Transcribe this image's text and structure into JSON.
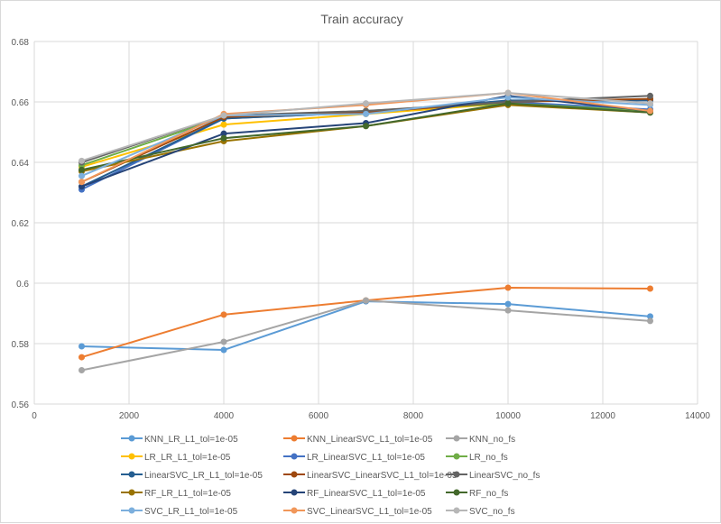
{
  "chart_data": {
    "type": "line",
    "title": "Train accuracy",
    "xlabel": "",
    "ylabel": "",
    "xlim": [
      0,
      14000
    ],
    "ylim": [
      0.56,
      0.68
    ],
    "xticks": [
      "0",
      "2000",
      "4000",
      "6000",
      "8000",
      "10000",
      "12000",
      "14000"
    ],
    "yticks": [
      "0.56",
      "0.58",
      "0.6",
      "0.62",
      "0.64",
      "0.66",
      "0.68"
    ],
    "grid": true,
    "legend_position": "bottom",
    "x": [
      1000,
      4000,
      7000,
      10000,
      13000
    ],
    "series": [
      {
        "name": "KNN_LR_L1_tol=1e-05",
        "color": "#5B9BD5",
        "values": [
          0.5791,
          0.5779,
          0.594,
          0.5931,
          0.589
        ]
      },
      {
        "name": "KNN_LinearSVC_L1_tol=1e-05",
        "color": "#ED7D31",
        "values": [
          0.5755,
          0.5896,
          0.5943,
          0.5985,
          0.5982
        ]
      },
      {
        "name": "KNN_no_fs",
        "color": "#A5A5A5",
        "values": [
          0.5712,
          0.5806,
          0.5943,
          0.591,
          0.5875
        ]
      },
      {
        "name": "LR_LR_L1_tol=1e-05",
        "color": "#FFC000",
        "values": [
          0.6385,
          0.6525,
          0.656,
          0.6595,
          0.657
        ]
      },
      {
        "name": "LR_LinearSVC_L1_tol=1e-05",
        "color": "#4472C4",
        "values": [
          0.631,
          0.6545,
          0.6565,
          0.66,
          0.6575
        ]
      },
      {
        "name": "LR_no_fs",
        "color": "#70AD47",
        "values": [
          0.639,
          0.655,
          0.657,
          0.6595,
          0.657
        ]
      },
      {
        "name": "LinearSVC_LR_L1_tol=1e-05",
        "color": "#255E91",
        "values": [
          0.632,
          0.6545,
          0.6565,
          0.6605,
          0.6605
        ]
      },
      {
        "name": "LinearSVC_LinearSVC_L1_tol=1e-05",
        "color": "#9E480E",
        "values": [
          0.6335,
          0.655,
          0.6565,
          0.66,
          0.661
        ]
      },
      {
        "name": "LinearSVC_no_fs",
        "color": "#636363",
        "values": [
          0.64,
          0.6555,
          0.657,
          0.66,
          0.662
        ]
      },
      {
        "name": "RF_LR_L1_tol=1e-05",
        "color": "#997300",
        "values": [
          0.637,
          0.647,
          0.652,
          0.659,
          0.6565
        ]
      },
      {
        "name": "RF_LinearSVC_L1_tol=1e-05",
        "color": "#264478",
        "values": [
          0.632,
          0.6495,
          0.653,
          0.662,
          0.657
        ]
      },
      {
        "name": "RF_no_fs",
        "color": "#43682B",
        "values": [
          0.6375,
          0.648,
          0.652,
          0.6595,
          0.6565
        ]
      },
      {
        "name": "SVC_LR_L1_tol=1e-05",
        "color": "#7CAFDD",
        "values": [
          0.6355,
          0.6555,
          0.656,
          0.6615,
          0.659
        ]
      },
      {
        "name": "SVC_LinearSVC_L1_tol=1e-05",
        "color": "#F1975A",
        "values": [
          0.6335,
          0.656,
          0.659,
          0.663,
          0.657
        ]
      },
      {
        "name": "SVC_no_fs",
        "color": "#B7B7B7",
        "values": [
          0.6405,
          0.6555,
          0.6595,
          0.663,
          0.6595
        ]
      }
    ]
  }
}
